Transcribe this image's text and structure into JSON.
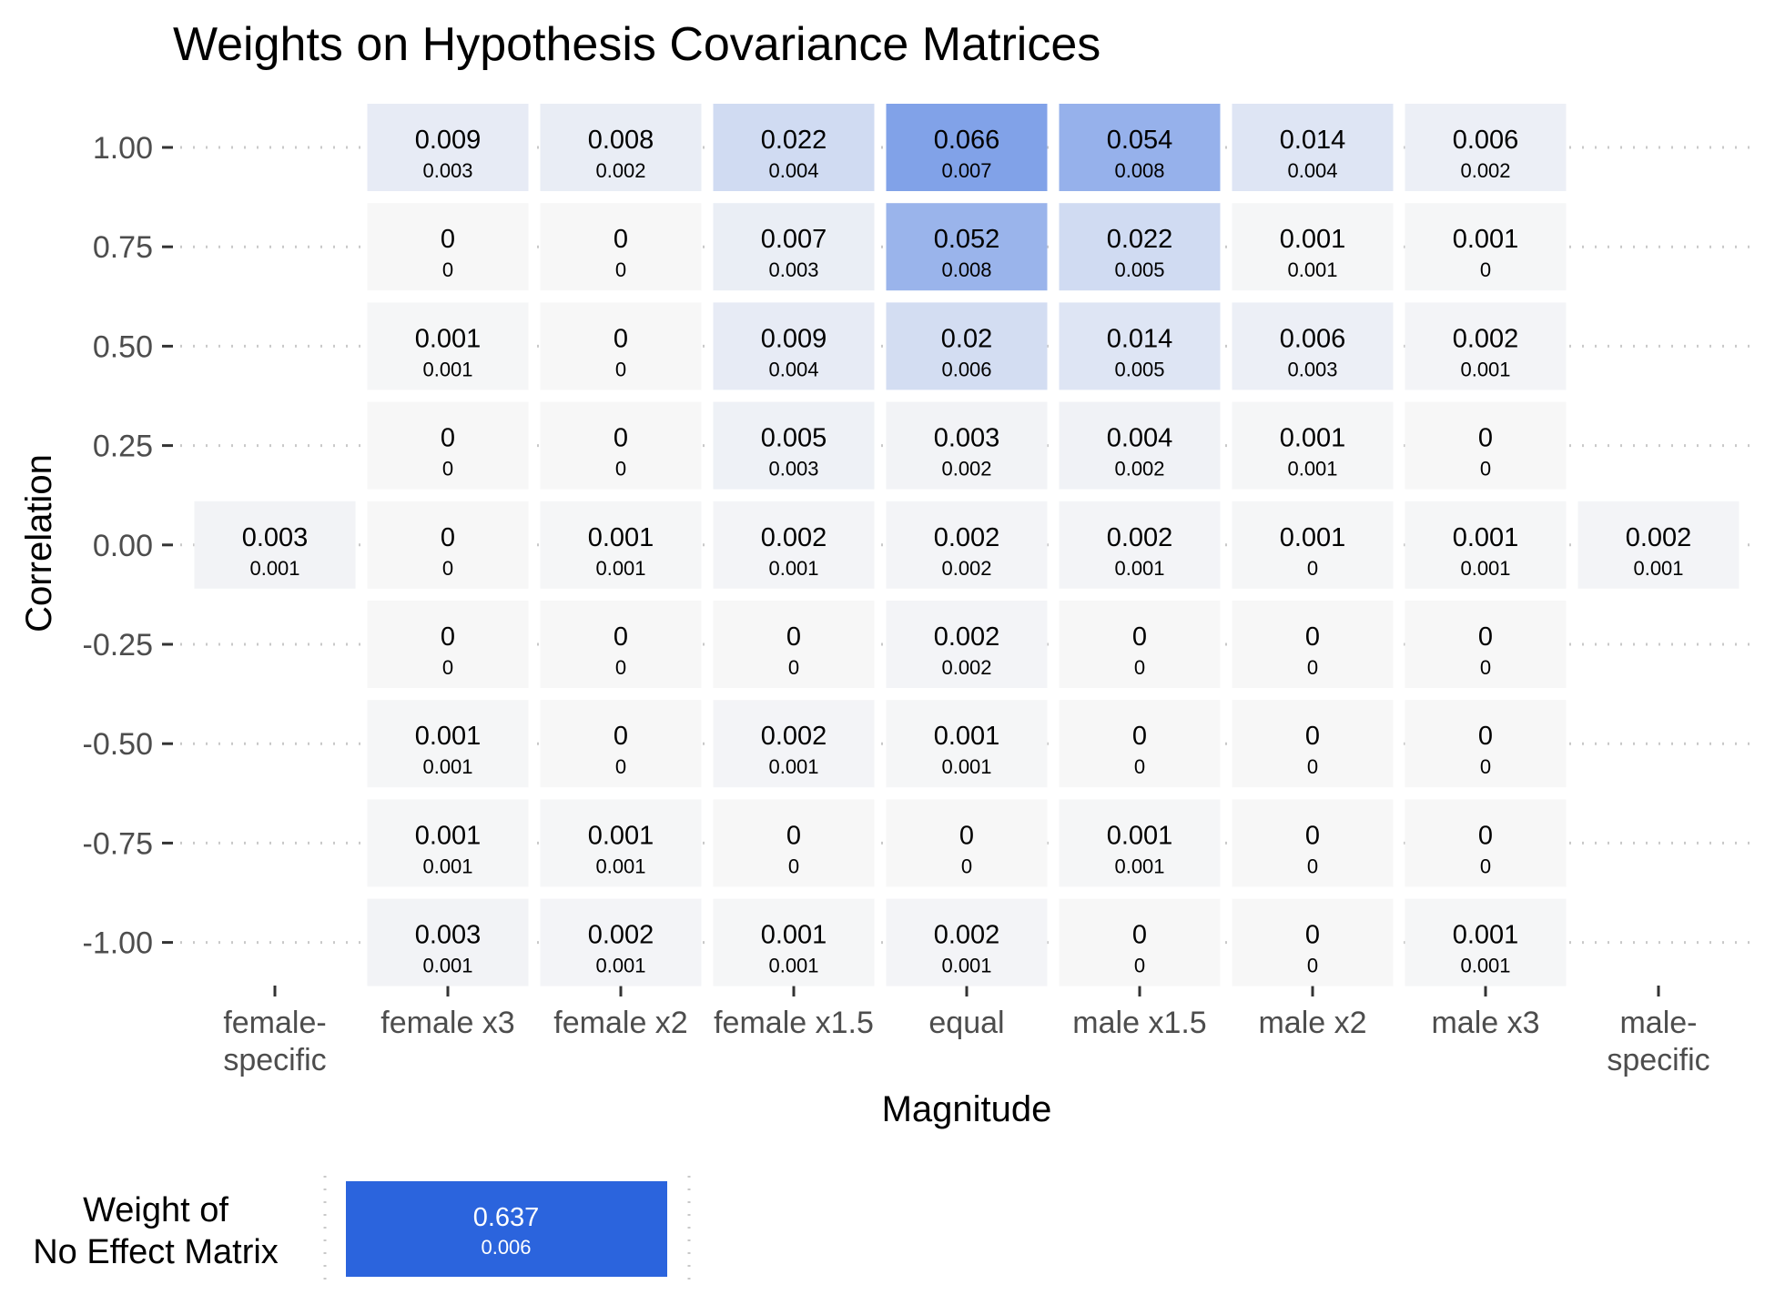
{
  "chart_data": {
    "type": "heatmap",
    "title": "Weights on Hypothesis Covariance Matrices",
    "xlabel": "Magnitude",
    "ylabel": "Correlation",
    "x_categories": [
      "female-\nspecific",
      "female x3",
      "female x2",
      "female x1.5",
      "equal",
      "male x1.5",
      "male x2",
      "male x3",
      "male-\nspecific"
    ],
    "y_categories": [
      "1.00",
      "0.75",
      "0.50",
      "0.25",
      "0.00",
      "-0.25",
      "-0.50",
      "-0.75",
      "-1.00"
    ],
    "low_color": "#f7f7f7",
    "high_color": "#2b64dd",
    "cells": [
      {
        "x": 1,
        "y": 0,
        "value": "0.009",
        "se": "0.003"
      },
      {
        "x": 2,
        "y": 0,
        "value": "0.008",
        "se": "0.002"
      },
      {
        "x": 3,
        "y": 0,
        "value": "0.022",
        "se": "0.004"
      },
      {
        "x": 4,
        "y": 0,
        "value": "0.066",
        "se": "0.007"
      },
      {
        "x": 5,
        "y": 0,
        "value": "0.054",
        "se": "0.008"
      },
      {
        "x": 6,
        "y": 0,
        "value": "0.014",
        "se": "0.004"
      },
      {
        "x": 7,
        "y": 0,
        "value": "0.006",
        "se": "0.002"
      },
      {
        "x": 1,
        "y": 1,
        "value": "0",
        "se": "0"
      },
      {
        "x": 2,
        "y": 1,
        "value": "0",
        "se": "0"
      },
      {
        "x": 3,
        "y": 1,
        "value": "0.007",
        "se": "0.003"
      },
      {
        "x": 4,
        "y": 1,
        "value": "0.052",
        "se": "0.008"
      },
      {
        "x": 5,
        "y": 1,
        "value": "0.022",
        "se": "0.005"
      },
      {
        "x": 6,
        "y": 1,
        "value": "0.001",
        "se": "0.001"
      },
      {
        "x": 7,
        "y": 1,
        "value": "0.001",
        "se": "0"
      },
      {
        "x": 1,
        "y": 2,
        "value": "0.001",
        "se": "0.001"
      },
      {
        "x": 2,
        "y": 2,
        "value": "0",
        "se": "0"
      },
      {
        "x": 3,
        "y": 2,
        "value": "0.009",
        "se": "0.004"
      },
      {
        "x": 4,
        "y": 2,
        "value": "0.02",
        "se": "0.006"
      },
      {
        "x": 5,
        "y": 2,
        "value": "0.014",
        "se": "0.005"
      },
      {
        "x": 6,
        "y": 2,
        "value": "0.006",
        "se": "0.003"
      },
      {
        "x": 7,
        "y": 2,
        "value": "0.002",
        "se": "0.001"
      },
      {
        "x": 1,
        "y": 3,
        "value": "0",
        "se": "0"
      },
      {
        "x": 2,
        "y": 3,
        "value": "0",
        "se": "0"
      },
      {
        "x": 3,
        "y": 3,
        "value": "0.005",
        "se": "0.003"
      },
      {
        "x": 4,
        "y": 3,
        "value": "0.003",
        "se": "0.002"
      },
      {
        "x": 5,
        "y": 3,
        "value": "0.004",
        "se": "0.002"
      },
      {
        "x": 6,
        "y": 3,
        "value": "0.001",
        "se": "0.001"
      },
      {
        "x": 7,
        "y": 3,
        "value": "0",
        "se": "0"
      },
      {
        "x": 0,
        "y": 4,
        "value": "0.003",
        "se": "0.001"
      },
      {
        "x": 1,
        "y": 4,
        "value": "0",
        "se": "0"
      },
      {
        "x": 2,
        "y": 4,
        "value": "0.001",
        "se": "0.001"
      },
      {
        "x": 3,
        "y": 4,
        "value": "0.002",
        "se": "0.001"
      },
      {
        "x": 4,
        "y": 4,
        "value": "0.002",
        "se": "0.002"
      },
      {
        "x": 5,
        "y": 4,
        "value": "0.002",
        "se": "0.001"
      },
      {
        "x": 6,
        "y": 4,
        "value": "0.001",
        "se": "0"
      },
      {
        "x": 7,
        "y": 4,
        "value": "0.001",
        "se": "0.001"
      },
      {
        "x": 8,
        "y": 4,
        "value": "0.002",
        "se": "0.001"
      },
      {
        "x": 1,
        "y": 5,
        "value": "0",
        "se": "0"
      },
      {
        "x": 2,
        "y": 5,
        "value": "0",
        "se": "0"
      },
      {
        "x": 3,
        "y": 5,
        "value": "0",
        "se": "0"
      },
      {
        "x": 4,
        "y": 5,
        "value": "0.002",
        "se": "0.002"
      },
      {
        "x": 5,
        "y": 5,
        "value": "0",
        "se": "0"
      },
      {
        "x": 6,
        "y": 5,
        "value": "0",
        "se": "0"
      },
      {
        "x": 7,
        "y": 5,
        "value": "0",
        "se": "0"
      },
      {
        "x": 1,
        "y": 6,
        "value": "0.001",
        "se": "0.001"
      },
      {
        "x": 2,
        "y": 6,
        "value": "0",
        "se": "0"
      },
      {
        "x": 3,
        "y": 6,
        "value": "0.002",
        "se": "0.001"
      },
      {
        "x": 4,
        "y": 6,
        "value": "0.001",
        "se": "0.001"
      },
      {
        "x": 5,
        "y": 6,
        "value": "0",
        "se": "0"
      },
      {
        "x": 6,
        "y": 6,
        "value": "0",
        "se": "0"
      },
      {
        "x": 7,
        "y": 6,
        "value": "0",
        "se": "0"
      },
      {
        "x": 1,
        "y": 7,
        "value": "0.001",
        "se": "0.001"
      },
      {
        "x": 2,
        "y": 7,
        "value": "0.001",
        "se": "0.001"
      },
      {
        "x": 3,
        "y": 7,
        "value": "0",
        "se": "0"
      },
      {
        "x": 4,
        "y": 7,
        "value": "0",
        "se": "0"
      },
      {
        "x": 5,
        "y": 7,
        "value": "0.001",
        "se": "0.001"
      },
      {
        "x": 6,
        "y": 7,
        "value": "0",
        "se": "0"
      },
      {
        "x": 7,
        "y": 7,
        "value": "0",
        "se": "0"
      },
      {
        "x": 1,
        "y": 8,
        "value": "0.003",
        "se": "0.001"
      },
      {
        "x": 2,
        "y": 8,
        "value": "0.002",
        "se": "0.001"
      },
      {
        "x": 3,
        "y": 8,
        "value": "0.001",
        "se": "0.001"
      },
      {
        "x": 4,
        "y": 8,
        "value": "0.002",
        "se": "0.001"
      },
      {
        "x": 5,
        "y": 8,
        "value": "0",
        "se": "0"
      },
      {
        "x": 6,
        "y": 8,
        "value": "0",
        "se": "0"
      },
      {
        "x": 7,
        "y": 8,
        "value": "0.001",
        "se": "0.001"
      }
    ],
    "no_effect": {
      "label": "Weight of\nNo Effect Matrix",
      "value": "0.637",
      "se": "0.006"
    }
  }
}
